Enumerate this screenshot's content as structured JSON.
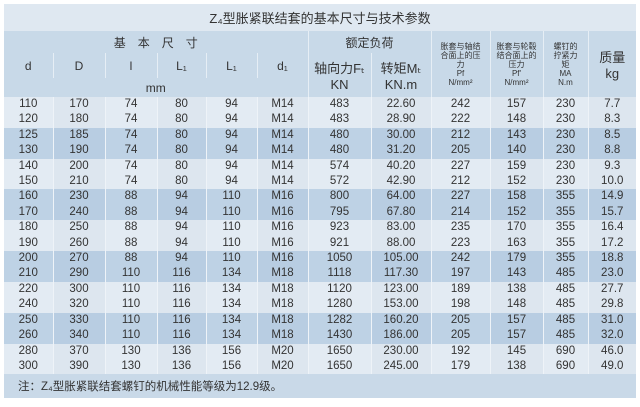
{
  "title": "Z₄型胀紧联结套的基本尺寸与技术参数",
  "header": {
    "group_dims": "基　本　尺　寸",
    "group_load": "额定负荷",
    "cols": [
      "d",
      "D",
      "l",
      "L₁",
      "L₁",
      "d₁"
    ],
    "unit_mm": "mm",
    "axial_force": "轴向力Fₜ",
    "axial_unit": "KN",
    "torque": "转矩Mₜ",
    "torque_unit": "KN.m",
    "pf_label": "胀套与轴结合面上的压力",
    "pf_sym": "Pf",
    "pf_unit": "N/mm²",
    "pf2_label": "胀套与轮毂结合面上的压力",
    "pf2_sym": "Pf'",
    "pf2_unit": "N/mm²",
    "ma_label": "螺钉的拧紧力矩",
    "ma_sym": "MA",
    "ma_unit": "N.m",
    "mass_label": "质量",
    "mass_unit": "kg"
  },
  "rows": [
    [
      "110",
      "170",
      "74",
      "80",
      "94",
      "M14",
      "483",
      "22.60",
      "242",
      "157",
      "230",
      "7.7"
    ],
    [
      "120",
      "180",
      "74",
      "80",
      "94",
      "M14",
      "483",
      "28.90",
      "222",
      "148",
      "230",
      "8.3"
    ],
    [
      "125",
      "185",
      "74",
      "80",
      "94",
      "M14",
      "480",
      "30.00",
      "212",
      "143",
      "230",
      "8.5"
    ],
    [
      "130",
      "190",
      "74",
      "80",
      "94",
      "M14",
      "480",
      "31.20",
      "205",
      "140",
      "230",
      "8.8"
    ],
    [
      "140",
      "200",
      "74",
      "80",
      "94",
      "M14",
      "574",
      "40.20",
      "227",
      "159",
      "230",
      "9.3"
    ],
    [
      "150",
      "210",
      "74",
      "80",
      "94",
      "M14",
      "572",
      "42.90",
      "212",
      "152",
      "230",
      "10.0"
    ],
    [
      "160",
      "230",
      "88",
      "94",
      "110",
      "M16",
      "800",
      "64.00",
      "227",
      "158",
      "355",
      "14.9"
    ],
    [
      "170",
      "240",
      "88",
      "94",
      "110",
      "M16",
      "795",
      "67.80",
      "214",
      "152",
      "355",
      "15.7"
    ],
    [
      "180",
      "250",
      "88",
      "94",
      "110",
      "M16",
      "923",
      "83.00",
      "235",
      "170",
      "355",
      "16.4"
    ],
    [
      "190",
      "260",
      "88",
      "94",
      "110",
      "M16",
      "921",
      "88.00",
      "223",
      "163",
      "355",
      "17.2"
    ],
    [
      "200",
      "270",
      "88",
      "94",
      "110",
      "M16",
      "1050",
      "105.00",
      "242",
      "179",
      "355",
      "18.8"
    ],
    [
      "210",
      "290",
      "110",
      "116",
      "134",
      "M18",
      "1118",
      "117.30",
      "197",
      "143",
      "485",
      "23.0"
    ],
    [
      "220",
      "300",
      "110",
      "116",
      "134",
      "M18",
      "1120",
      "123.00",
      "189",
      "138",
      "485",
      "27.7"
    ],
    [
      "240",
      "320",
      "110",
      "116",
      "134",
      "M18",
      "1280",
      "153.00",
      "198",
      "148",
      "485",
      "29.8"
    ],
    [
      "250",
      "330",
      "110",
      "116",
      "134",
      "M18",
      "1282",
      "160.20",
      "205",
      "157",
      "485",
      "31.0"
    ],
    [
      "260",
      "340",
      "110",
      "116",
      "134",
      "M18",
      "1430",
      "186.00",
      "205",
      "157",
      "485",
      "32.0"
    ],
    [
      "280",
      "370",
      "130",
      "136",
      "156",
      "M20",
      "1650",
      "230.00",
      "192",
      "145",
      "690",
      "46.0"
    ],
    [
      "300",
      "390",
      "130",
      "136",
      "156",
      "M20",
      "1650",
      "245.00",
      "179",
      "138",
      "690",
      "49.0"
    ]
  ],
  "note": "注：Z₄型胀紧联结套螺钉的机械性能等级为12.9级。"
}
